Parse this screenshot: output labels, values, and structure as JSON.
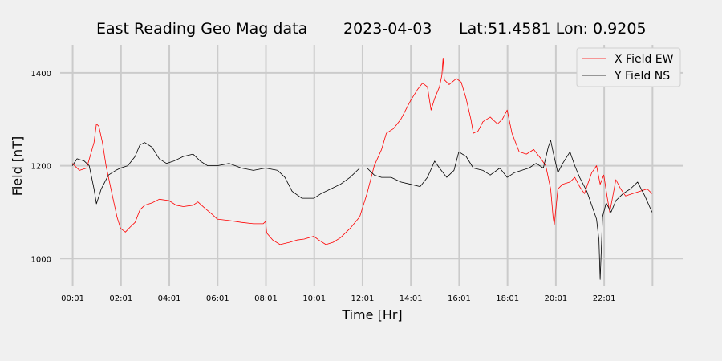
{
  "chart_data": {
    "type": "line",
    "title": {
      "station": "East Reading Geo Mag data",
      "date": "2023-04-03",
      "location": "Lat:51.4581  Lon: 0.9205"
    },
    "xlabel": "Time  [Hr]",
    "ylabel": "Field  [nT]",
    "xlim": [
      -0.6,
      25.3
    ],
    "ylim": [
      940,
      1450
    ],
    "x_ticks": [
      {
        "value": 0.0167,
        "label": "00:01"
      },
      {
        "value": 2.0167,
        "label": "02:01"
      },
      {
        "value": 4.0167,
        "label": "04:01"
      },
      {
        "value": 6.0167,
        "label": "06:01"
      },
      {
        "value": 8.0167,
        "label": "08:01"
      },
      {
        "value": 10.0167,
        "label": "10:01"
      },
      {
        "value": 12.0167,
        "label": "12:01"
      },
      {
        "value": 14.0167,
        "label": "14:01"
      },
      {
        "value": 16.0167,
        "label": "16:01"
      },
      {
        "value": 18.0167,
        "label": "18:01"
      },
      {
        "value": 20.0167,
        "label": "20:01"
      },
      {
        "value": 22.0167,
        "label": "22:01"
      }
    ],
    "x_grid_extra": [
      24.0167
    ],
    "y_ticks": [
      1000,
      1200,
      1400
    ],
    "grid": true,
    "legend_position": "top-right",
    "series": [
      {
        "name": "X Field EW",
        "color": "#ff0000",
        "points": [
          [
            0,
            1205
          ],
          [
            0.3,
            1190
          ],
          [
            0.6,
            1195
          ],
          [
            0.9,
            1250
          ],
          [
            1.0,
            1290
          ],
          [
            1.1,
            1285
          ],
          [
            1.25,
            1250
          ],
          [
            1.4,
            1200
          ],
          [
            1.6,
            1150
          ],
          [
            1.85,
            1090
          ],
          [
            2.0,
            1065
          ],
          [
            2.2,
            1057
          ],
          [
            2.4,
            1068
          ],
          [
            2.6,
            1078
          ],
          [
            2.8,
            1105
          ],
          [
            3.0,
            1115
          ],
          [
            3.3,
            1120
          ],
          [
            3.6,
            1128
          ],
          [
            4.0,
            1125
          ],
          [
            4.3,
            1115
          ],
          [
            4.6,
            1112
          ],
          [
            5.0,
            1115
          ],
          [
            5.2,
            1122
          ],
          [
            5.5,
            1108
          ],
          [
            5.8,
            1095
          ],
          [
            6.0,
            1085
          ],
          [
            6.5,
            1082
          ],
          [
            7.0,
            1078
          ],
          [
            7.5,
            1075
          ],
          [
            7.9,
            1075
          ],
          [
            8.0,
            1080
          ],
          [
            8.05,
            1055
          ],
          [
            8.3,
            1040
          ],
          [
            8.6,
            1030
          ],
          [
            9.0,
            1035
          ],
          [
            9.3,
            1040
          ],
          [
            9.6,
            1042
          ],
          [
            10.0,
            1048
          ],
          [
            10.2,
            1040
          ],
          [
            10.5,
            1030
          ],
          [
            10.8,
            1035
          ],
          [
            11.1,
            1045
          ],
          [
            11.5,
            1065
          ],
          [
            11.9,
            1090
          ],
          [
            12.2,
            1140
          ],
          [
            12.5,
            1200
          ],
          [
            12.8,
            1235
          ],
          [
            13.0,
            1270
          ],
          [
            13.3,
            1280
          ],
          [
            13.6,
            1300
          ],
          [
            14.0,
            1340
          ],
          [
            14.3,
            1365
          ],
          [
            14.5,
            1378
          ],
          [
            14.7,
            1370
          ],
          [
            14.85,
            1320
          ],
          [
            15.0,
            1345
          ],
          [
            15.2,
            1370
          ],
          [
            15.3,
            1395
          ],
          [
            15.35,
            1432
          ],
          [
            15.4,
            1385
          ],
          [
            15.6,
            1375
          ],
          [
            15.9,
            1388
          ],
          [
            16.1,
            1380
          ],
          [
            16.3,
            1345
          ],
          [
            16.5,
            1300
          ],
          [
            16.6,
            1270
          ],
          [
            16.8,
            1275
          ],
          [
            17.0,
            1295
          ],
          [
            17.3,
            1305
          ],
          [
            17.6,
            1290
          ],
          [
            17.8,
            1300
          ],
          [
            18.0,
            1320
          ],
          [
            18.2,
            1270
          ],
          [
            18.5,
            1230
          ],
          [
            18.8,
            1225
          ],
          [
            19.1,
            1235
          ],
          [
            19.4,
            1215
          ],
          [
            19.6,
            1200
          ],
          [
            19.8,
            1150
          ],
          [
            19.9,
            1090
          ],
          [
            19.95,
            1072
          ],
          [
            20.1,
            1150
          ],
          [
            20.3,
            1160
          ],
          [
            20.6,
            1165
          ],
          [
            20.8,
            1175
          ],
          [
            21.0,
            1155
          ],
          [
            21.2,
            1140
          ],
          [
            21.5,
            1185
          ],
          [
            21.7,
            1200
          ],
          [
            21.85,
            1160
          ],
          [
            22.0,
            1180
          ],
          [
            22.15,
            1130
          ],
          [
            22.25,
            1100
          ],
          [
            22.5,
            1170
          ],
          [
            22.7,
            1150
          ],
          [
            22.9,
            1135
          ],
          [
            23.2,
            1140
          ],
          [
            23.5,
            1145
          ],
          [
            23.8,
            1150
          ],
          [
            24.0,
            1140
          ]
        ]
      },
      {
        "name": "Y Field NS",
        "color": "#000000",
        "points": [
          [
            0,
            1200
          ],
          [
            0.2,
            1215
          ],
          [
            0.5,
            1210
          ],
          [
            0.7,
            1200
          ],
          [
            0.9,
            1150
          ],
          [
            1.0,
            1118
          ],
          [
            1.2,
            1150
          ],
          [
            1.5,
            1180
          ],
          [
            1.8,
            1190
          ],
          [
            2.0,
            1195
          ],
          [
            2.3,
            1200
          ],
          [
            2.6,
            1220
          ],
          [
            2.8,
            1245
          ],
          [
            3.0,
            1250
          ],
          [
            3.3,
            1240
          ],
          [
            3.6,
            1215
          ],
          [
            3.9,
            1205
          ],
          [
            4.2,
            1210
          ],
          [
            4.6,
            1220
          ],
          [
            5.0,
            1225
          ],
          [
            5.3,
            1210
          ],
          [
            5.6,
            1200
          ],
          [
            6.0,
            1200
          ],
          [
            6.5,
            1205
          ],
          [
            7.0,
            1195
          ],
          [
            7.5,
            1190
          ],
          [
            8.0,
            1195
          ],
          [
            8.5,
            1190
          ],
          [
            8.8,
            1175
          ],
          [
            9.1,
            1145
          ],
          [
            9.5,
            1130
          ],
          [
            10.0,
            1130
          ],
          [
            10.3,
            1140
          ],
          [
            10.7,
            1150
          ],
          [
            11.1,
            1160
          ],
          [
            11.5,
            1175
          ],
          [
            11.9,
            1195
          ],
          [
            12.2,
            1195
          ],
          [
            12.5,
            1180
          ],
          [
            12.8,
            1175
          ],
          [
            13.2,
            1175
          ],
          [
            13.6,
            1165
          ],
          [
            14.0,
            1160
          ],
          [
            14.4,
            1155
          ],
          [
            14.7,
            1175
          ],
          [
            15.0,
            1210
          ],
          [
            15.2,
            1195
          ],
          [
            15.5,
            1175
          ],
          [
            15.8,
            1190
          ],
          [
            16.0,
            1230
          ],
          [
            16.3,
            1220
          ],
          [
            16.6,
            1195
          ],
          [
            17.0,
            1190
          ],
          [
            17.3,
            1180
          ],
          [
            17.7,
            1195
          ],
          [
            18.0,
            1175
          ],
          [
            18.3,
            1185
          ],
          [
            18.6,
            1190
          ],
          [
            18.9,
            1195
          ],
          [
            19.2,
            1205
          ],
          [
            19.5,
            1195
          ],
          [
            19.7,
            1240
          ],
          [
            19.8,
            1255
          ],
          [
            19.9,
            1230
          ],
          [
            20.1,
            1185
          ],
          [
            20.3,
            1205
          ],
          [
            20.6,
            1230
          ],
          [
            20.8,
            1200
          ],
          [
            21.0,
            1175
          ],
          [
            21.3,
            1145
          ],
          [
            21.5,
            1115
          ],
          [
            21.7,
            1085
          ],
          [
            21.8,
            1040
          ],
          [
            21.85,
            955
          ],
          [
            21.95,
            1090
          ],
          [
            22.1,
            1120
          ],
          [
            22.3,
            1100
          ],
          [
            22.5,
            1125
          ],
          [
            22.8,
            1140
          ],
          [
            23.1,
            1150
          ],
          [
            23.4,
            1165
          ],
          [
            23.7,
            1135
          ],
          [
            24.0,
            1100
          ]
        ]
      }
    ]
  }
}
